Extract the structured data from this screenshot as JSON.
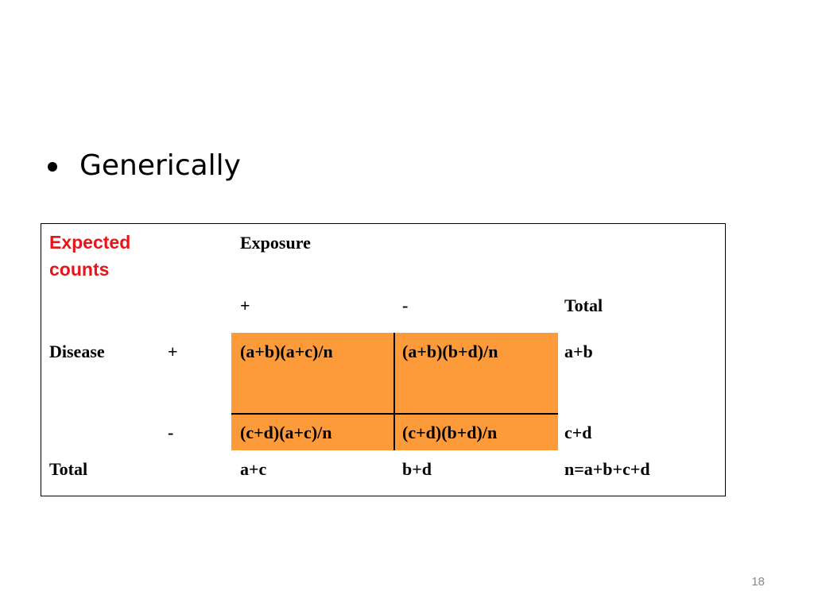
{
  "slide": {
    "bullet_text": "Generically",
    "page_number": "18"
  },
  "table": {
    "corner_label": "Expected counts",
    "exposure_label": "Exposure",
    "col_plus": "+",
    "col_minus": "-",
    "col_total": "Total",
    "disease_label": "Disease",
    "row_plus": "+",
    "row_minus": "-",
    "row_total_label": "Total",
    "cells": {
      "plus_plus": "(a+b)(a+c)/n",
      "plus_minus": "(a+b)(b+d)/n",
      "plus_total": "a+b",
      "minus_plus": "(c+d)(a+c)/n",
      "minus_minus": "(c+d)(b+d)/n",
      "minus_total": "c+d",
      "total_plus": "a+c",
      "total_minus": "b+d",
      "total_total": "n=a+b+c+d"
    },
    "highlight_color": "#fd9a3a",
    "header_color": "#e8141b"
  }
}
